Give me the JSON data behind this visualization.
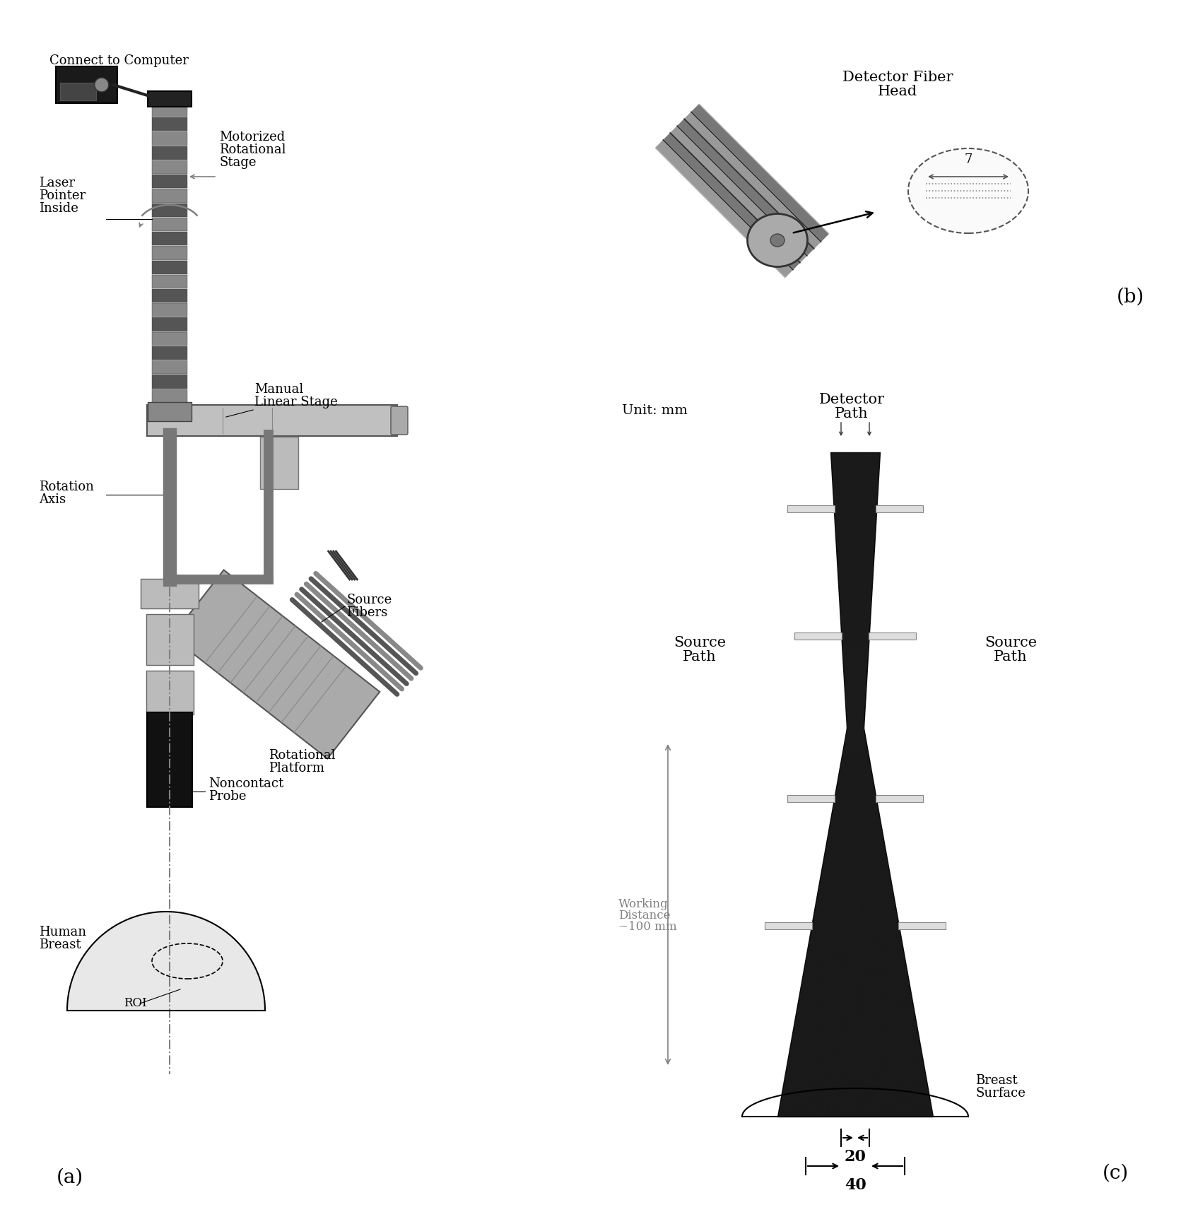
{
  "bg_color": "#ffffff",
  "label_a": "(a)",
  "label_b": "(b)",
  "label_c": "(c)",
  "panel_b_title_line1": "Detector Fiber",
  "panel_b_title_line2": "Head",
  "panel_c_unit": "Unit: mm",
  "panel_c_detector_line1": "Detector",
  "panel_c_detector_line2": "Path",
  "panel_c_source_left_line1": "Source",
  "panel_c_source_left_line2": "Path",
  "panel_c_source_right_line1": "Source",
  "panel_c_source_right_line2": "Path",
  "panel_c_breast_line1": "Breast",
  "panel_c_breast_line2": "Surface",
  "panel_c_working_line1": "Working",
  "panel_c_working_line2": "Distance",
  "panel_c_working_line3": "~100 mm",
  "panel_c_20": "20",
  "panel_c_40": "40",
  "label_connect": "Connect to Computer",
  "label_motor_line1": "Motorized",
  "label_motor_line2": "Rotational",
  "label_motor_line3": "Stage",
  "label_laser_line1": "Laser",
  "label_laser_line2": "Pointer",
  "label_laser_line3": "Inside",
  "label_manual_line1": "Manual",
  "label_manual_line2": "Linear Stage",
  "label_rotation_line1": "Rotation",
  "label_rotation_line2": "Axis",
  "label_source_fibers_line1": "Source",
  "label_source_fibers_line2": "Fibers",
  "label_rotational_line1": "Rotational",
  "label_rotational_line2": "Platform",
  "label_noncontact_line1": "Noncontact",
  "label_noncontact_line2": "Probe",
  "label_human_line1": "Human",
  "label_human_line2": "Breast",
  "label_roi": "ROI",
  "fiber_diameter_label": "7",
  "fig_width": 16.71,
  "fig_height": 17.32,
  "dpi": 100
}
